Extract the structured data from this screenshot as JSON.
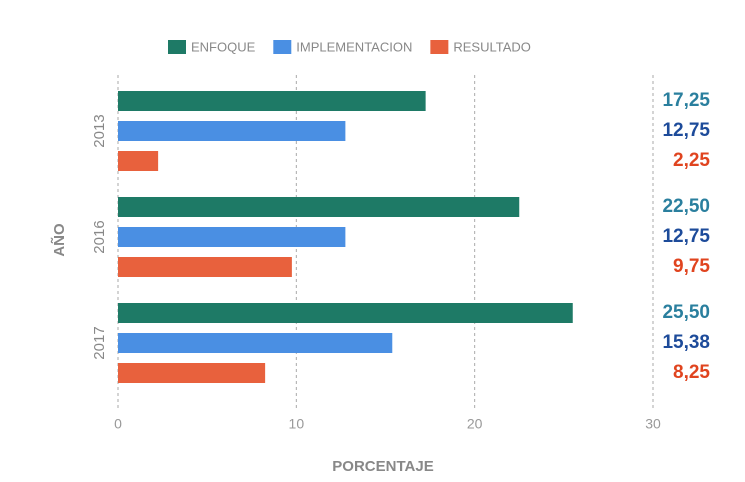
{
  "chart_data": {
    "type": "barh",
    "categories": [
      "2013",
      "2016",
      "2017"
    ],
    "series": [
      {
        "name": "ENFOQUE",
        "color": "#1e7a66",
        "label_color": "#2a7f9e",
        "values": [
          17.25,
          22.5,
          25.5
        ],
        "value_labels": [
          "17,25",
          "22,50",
          "25,50"
        ]
      },
      {
        "name": "IMPLEMENTACION",
        "color": "#4a8fe3",
        "label_color": "#1d4b9a",
        "values": [
          12.75,
          12.75,
          15.38
        ],
        "value_labels": [
          "12,75",
          "12,75",
          "15,38"
        ]
      },
      {
        "name": "RESULTADO",
        "color": "#e8613d",
        "label_color": "#e0441f",
        "values": [
          2.25,
          9.75,
          8.25
        ],
        "value_labels": [
          "2,25",
          "9,75",
          "8,25"
        ]
      }
    ],
    "xlim": [
      0,
      30
    ],
    "xticks": [
      0,
      10,
      20,
      30
    ],
    "grid": true,
    "xlabel": "PORCENTAJE",
    "ylabel": "AÑO"
  }
}
